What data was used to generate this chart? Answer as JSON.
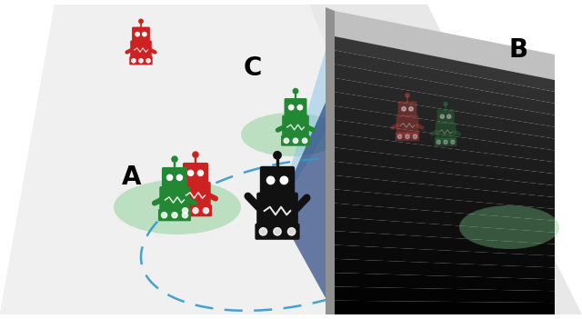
{
  "background_color": "#ffffff",
  "floor_light_color": "#f2f2f2",
  "floor_dark_color": "#d8d8d8",
  "wall_top_color": "#b8b8b8",
  "wall_front_color": "#252525",
  "wall_front_mid_color": "#555555",
  "wall_side_color": "#7a7a7a",
  "sensor_cone_dark_color": "#1a3a7a",
  "sensor_cone_light_color": "#7ab0d0",
  "green_ellipse_color": "#7dcc8a",
  "green_ellipse_alpha": 0.45,
  "dashed_path_color": "#3399cc",
  "label_A": "A",
  "label_B": "B",
  "label_C": "C",
  "label_fontsize": 20,
  "label_fontweight": "bold"
}
